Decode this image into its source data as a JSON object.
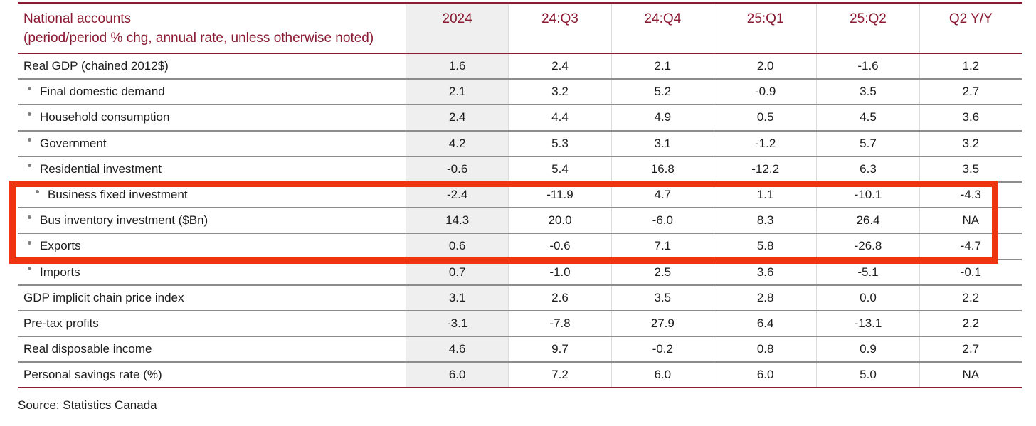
{
  "chart_data": {
    "type": "table",
    "title": "National accounts",
    "subtitle": "(period/period % chg, annual rate, unless otherwise noted)",
    "columns": [
      "2024",
      "24:Q3",
      "24:Q4",
      "25:Q1",
      "25:Q2",
      "Q2 Y/Y"
    ],
    "rows": [
      {
        "label": "Real GDP (chained 2012$)",
        "bulleted": false,
        "values": [
          "1.6",
          "2.4",
          "2.1",
          "2.0",
          "-1.6",
          "1.2"
        ]
      },
      {
        "label": "Final domestic demand",
        "bulleted": true,
        "values": [
          "2.1",
          "3.2",
          "5.2",
          "-0.9",
          "3.5",
          "2.7"
        ]
      },
      {
        "label": "Household consumption",
        "bulleted": true,
        "values": [
          "2.4",
          "4.4",
          "4.9",
          "0.5",
          "4.5",
          "3.6"
        ]
      },
      {
        "label": "Government",
        "bulleted": true,
        "values": [
          "4.2",
          "5.3",
          "3.1",
          "-1.2",
          "5.7",
          "3.2"
        ]
      },
      {
        "label": "Residential investment",
        "bulleted": true,
        "values": [
          "-0.6",
          "5.4",
          "16.8",
          "-12.2",
          "6.3",
          "3.5"
        ]
      },
      {
        "label": "Business fixed investment",
        "bulleted": true,
        "values": [
          "-2.4",
          "-11.9",
          "4.7",
          "1.1",
          "-10.1",
          "-4.3"
        ]
      },
      {
        "label": "Bus inventory investment ($Bn)",
        "bulleted": true,
        "values": [
          "14.3",
          "20.0",
          "-6.0",
          "8.3",
          "26.4",
          "NA"
        ]
      },
      {
        "label": "Exports",
        "bulleted": true,
        "values": [
          "0.6",
          "-0.6",
          "7.1",
          "5.8",
          "-26.8",
          "-4.7"
        ]
      },
      {
        "label": "Imports",
        "bulleted": true,
        "values": [
          "0.7",
          "-1.0",
          "2.5",
          "3.6",
          "-5.1",
          "-0.1"
        ]
      },
      {
        "label": "GDP implicit chain price index",
        "bulleted": false,
        "values": [
          "3.1",
          "2.6",
          "3.5",
          "2.8",
          "0.0",
          "2.2"
        ]
      },
      {
        "label": "Pre-tax profits",
        "bulleted": false,
        "values": [
          "-3.1",
          "-7.8",
          "27.9",
          "6.4",
          "-13.1",
          "2.2"
        ]
      },
      {
        "label": "Real disposable income",
        "bulleted": false,
        "values": [
          "4.6",
          "9.7",
          "-0.2",
          "0.8",
          "0.9",
          "2.7"
        ]
      },
      {
        "label": "Personal savings rate (%)",
        "bulleted": false,
        "values": [
          "6.0",
          "7.2",
          "6.0",
          "6.0",
          "5.0",
          "NA"
        ]
      }
    ],
    "highlighted_row_labels": [
      "Business fixed investment",
      "Bus inventory investment ($Bn)",
      "Exports"
    ],
    "source": "Source: Statistics Canada",
    "layout": "first data column (2024) shaded; red annotation box around highlighted rows",
    "colors": {
      "accent_maroon": "#8b1a33",
      "row_separator": "#8c8c8c",
      "shaded_column_bg": "#efefef",
      "highlight_red": "#ee3510",
      "text": "#1c1c1c"
    }
  }
}
